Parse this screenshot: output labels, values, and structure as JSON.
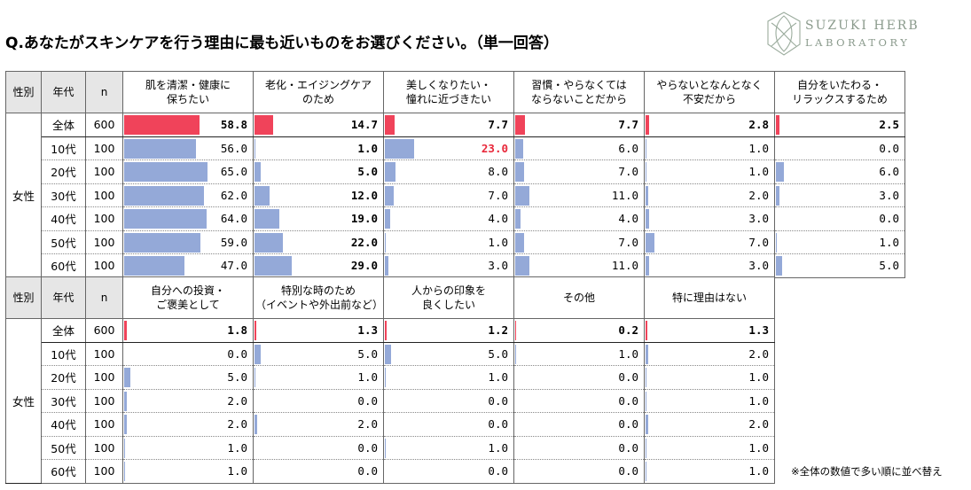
{
  "title": "Q.あなたがスキンケアを行う理由に最も近いものをお選びください。（単一回答）",
  "logo": {
    "line1": "SUZUKI HERB",
    "line2": "LABORATORY"
  },
  "note": "※全体の数値で多い順に並べ替え",
  "colors": {
    "total_bar": "#f0435a",
    "age_bar": "#94a9d8",
    "highlight_text": "#e8283a"
  },
  "chart_data": [
    {
      "type": "table",
      "header": {
        "sex": "性別",
        "age": "年代",
        "n": "n"
      },
      "sex_label": "女性",
      "columns": [
        "肌を清潔・健康に\n保ちたい",
        "老化・エイジングケア\nのため",
        "美しくなりたい・\n憧れに近づきたい",
        "習慣・やらなくては\nならないことだから",
        "やらないとなんとなく\n不安だから",
        "自分をいたわる・\nリラックスするため"
      ],
      "rows": [
        {
          "label": "全体",
          "n": "600",
          "values": [
            "58.8",
            "14.7",
            "7.7",
            "7.7",
            "2.8",
            "2.5"
          ]
        },
        {
          "label": "10代",
          "n": "100",
          "values": [
            "56.0",
            "1.0",
            "23.0",
            "6.0",
            "1.0",
            "0.0"
          ]
        },
        {
          "label": "20代",
          "n": "100",
          "values": [
            "65.0",
            "5.0",
            "8.0",
            "7.0",
            "1.0",
            "6.0"
          ]
        },
        {
          "label": "30代",
          "n": "100",
          "values": [
            "62.0",
            "12.0",
            "7.0",
            "11.0",
            "2.0",
            "3.0"
          ]
        },
        {
          "label": "40代",
          "n": "100",
          "values": [
            "64.0",
            "19.0",
            "4.0",
            "4.0",
            "3.0",
            "0.0"
          ]
        },
        {
          "label": "50代",
          "n": "100",
          "values": [
            "59.0",
            "22.0",
            "1.0",
            "7.0",
            "7.0",
            "1.0"
          ]
        },
        {
          "label": "60代",
          "n": "100",
          "values": [
            "47.0",
            "29.0",
            "3.0",
            "11.0",
            "3.0",
            "5.0"
          ]
        }
      ],
      "bold_columns": [
        1
      ],
      "highlight_cells": [
        [
          1,
          2
        ]
      ]
    },
    {
      "type": "table",
      "header": {
        "sex": "性別",
        "age": "年代",
        "n": "n"
      },
      "sex_label": "女性",
      "columns": [
        "自分への投資・\nご褒美として",
        "特別な時のため\n（イベントや外出前など）",
        "人からの印象を\n良くしたい",
        "その他",
        "特に理由はない"
      ],
      "rows": [
        {
          "label": "全体",
          "n": "600",
          "values": [
            "1.8",
            "1.3",
            "1.2",
            "0.2",
            "1.3"
          ]
        },
        {
          "label": "10代",
          "n": "100",
          "values": [
            "0.0",
            "5.0",
            "5.0",
            "1.0",
            "2.0"
          ]
        },
        {
          "label": "20代",
          "n": "100",
          "values": [
            "5.0",
            "1.0",
            "1.0",
            "0.0",
            "1.0"
          ]
        },
        {
          "label": "30代",
          "n": "100",
          "values": [
            "2.0",
            "0.0",
            "0.0",
            "0.0",
            "1.0"
          ]
        },
        {
          "label": "40代",
          "n": "100",
          "values": [
            "2.0",
            "2.0",
            "0.0",
            "0.0",
            "2.0"
          ]
        },
        {
          "label": "50代",
          "n": "100",
          "values": [
            "1.0",
            "0.0",
            "1.0",
            "0.0",
            "1.0"
          ]
        },
        {
          "label": "60代",
          "n": "100",
          "values": [
            "1.0",
            "0.0",
            "0.0",
            "0.0",
            "1.0"
          ]
        }
      ],
      "bold_columns": [],
      "highlight_cells": []
    }
  ]
}
